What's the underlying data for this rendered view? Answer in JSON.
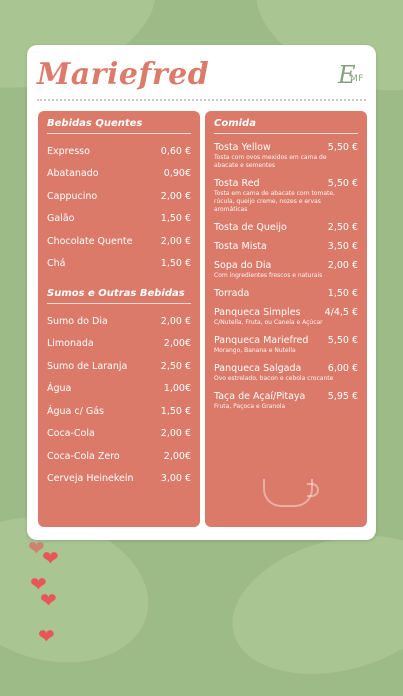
{
  "brand": {
    "name": "Mariefred",
    "monogram_big": "E",
    "monogram_small": "MF"
  },
  "hot_drinks": {
    "title": "Bebidas Quentes",
    "items": [
      {
        "name": "Expresso",
        "price": "0,60 €"
      },
      {
        "name": "Abatanado",
        "price": "0,90€"
      },
      {
        "name": "Cappucino",
        "price": "2,00 €"
      },
      {
        "name": "Galão",
        "price": "1,50 €"
      },
      {
        "name": "Chocolate Quente",
        "price": "2,00 €"
      },
      {
        "name": "Chá",
        "price": "1,50 €"
      }
    ]
  },
  "other_drinks": {
    "title": "Sumos e Outras Bebidas",
    "items": [
      {
        "name": "Sumo do Dia",
        "price": "2,00 €"
      },
      {
        "name": "Limonada",
        "price": "2,00€"
      },
      {
        "name": "Sumo de Laranja",
        "price": "2,50 €"
      },
      {
        "name": "Água",
        "price": "1,00€"
      },
      {
        "name": "Água c/ Gás",
        "price": "1,50 €"
      },
      {
        "name": "Coca-Cola",
        "price": "2,00 €"
      },
      {
        "name": "Coca-Cola Zero",
        "price": "2,00€"
      },
      {
        "name": "Cerveja Heinekein",
        "price": "3,00 €"
      }
    ]
  },
  "food": {
    "title": "Comida",
    "items": [
      {
        "name": "Tosta Yellow",
        "price": "5,50 €",
        "desc": "Tosta com ovos mexidos em cama de abacate e sementes"
      },
      {
        "name": "Tosta Red",
        "price": "5,50 €",
        "desc": "Tosta em cama de abacate com tomate, rúcula, queijo creme, nozes e ervas aromáticas"
      },
      {
        "name": "Tosta de Queijo",
        "price": "2,50 €",
        "desc": ""
      },
      {
        "name": "Tosta Mista",
        "price": "3,50 €",
        "desc": ""
      },
      {
        "name": "Sopa do Dia",
        "price": "2,00 €",
        "desc": "Com ingredientes frescos e naturais"
      },
      {
        "name": "Torrada",
        "price": "1,50 €",
        "desc": ""
      },
      {
        "name": "Panqueca Simples",
        "price": "4/4,5 €",
        "desc": "C/Nutella, Fruta, ou Canela e Açúcar"
      },
      {
        "name": "Panqueca Mariefred",
        "price": "5,50 €",
        "desc": "Morango, Banana e Nutella"
      },
      {
        "name": "Panqueca Salgada",
        "price": "6,00 €",
        "desc": "Ovo estrelado, bacon e cebola crocante"
      },
      {
        "name": "Taça de Açaí/Pitaya",
        "price": "5,95 €",
        "desc": "Fruta, Paçoca e Granola"
      }
    ]
  },
  "colors": {
    "panel": "#db7a68",
    "brand": "#dd7b6b",
    "background": "#9cbb86",
    "heart": "#e8565a"
  }
}
